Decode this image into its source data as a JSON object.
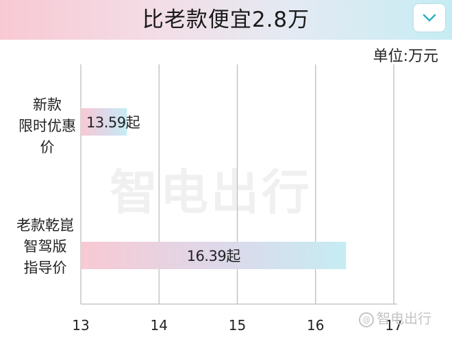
{
  "header": {
    "title": "比老款便宜2.8万",
    "toggle_icon": "chevron-down-icon",
    "accent_color": "#2bb0c8"
  },
  "unit_label": "单位:万元",
  "watermark": "智电出行",
  "brand": {
    "mark": "@",
    "text": "智电出行"
  },
  "chart_data": {
    "type": "bar",
    "orientation": "horizontal",
    "categories": [
      {
        "lines": [
          "新款",
          "限时优惠价"
        ]
      },
      {
        "lines": [
          "老款乾崑",
          "智驾版",
          "指导价"
        ]
      }
    ],
    "values": [
      13.59,
      16.39
    ],
    "value_labels": [
      "13.59起",
      "16.39起"
    ],
    "xlim": [
      13,
      17
    ],
    "xticks": [
      "13",
      "14",
      "15",
      "16",
      "17"
    ],
    "grid": true,
    "bar_colors": [
      "#f8c9d3",
      "#c6ecf3"
    ]
  }
}
